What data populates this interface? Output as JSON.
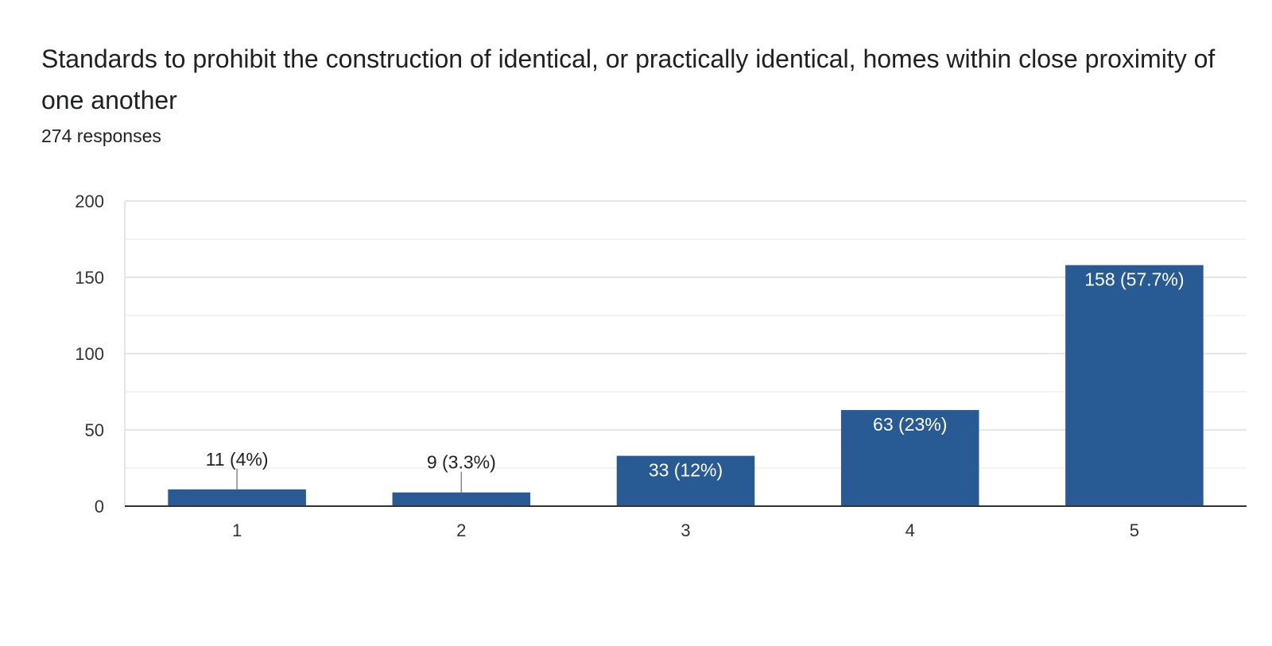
{
  "header": {
    "title": "Standards to prohibit the construction of identical, or practically identical, homes within close proximity of one another",
    "responses": "274 responses"
  },
  "colors": {
    "bar": "#285a94",
    "grid": "#e6e6e6",
    "axis": "#333333",
    "tick_text": "#333333",
    "label_outside": "#222222",
    "label_inside": "#ffffff",
    "leader": "#888888"
  },
  "chart_data": {
    "type": "bar",
    "title": "Standards to prohibit the construction of identical, or practically identical, homes within close proximity of one another",
    "subtitle": "274 responses",
    "xlabel": "",
    "ylabel": "",
    "categories": [
      "1",
      "2",
      "3",
      "4",
      "5"
    ],
    "values": [
      11,
      9,
      33,
      63,
      158
    ],
    "data_labels": [
      "11 (4%)",
      "9 (3.3%)",
      "33 (12%)",
      "63 (23%)",
      "158 (57.7%)"
    ],
    "ylim": [
      0,
      200
    ],
    "y_major_ticks": [
      0,
      50,
      100,
      150,
      200
    ],
    "y_minor_ticks": [
      25,
      75,
      125,
      175
    ],
    "grid": true,
    "legend": "none"
  }
}
